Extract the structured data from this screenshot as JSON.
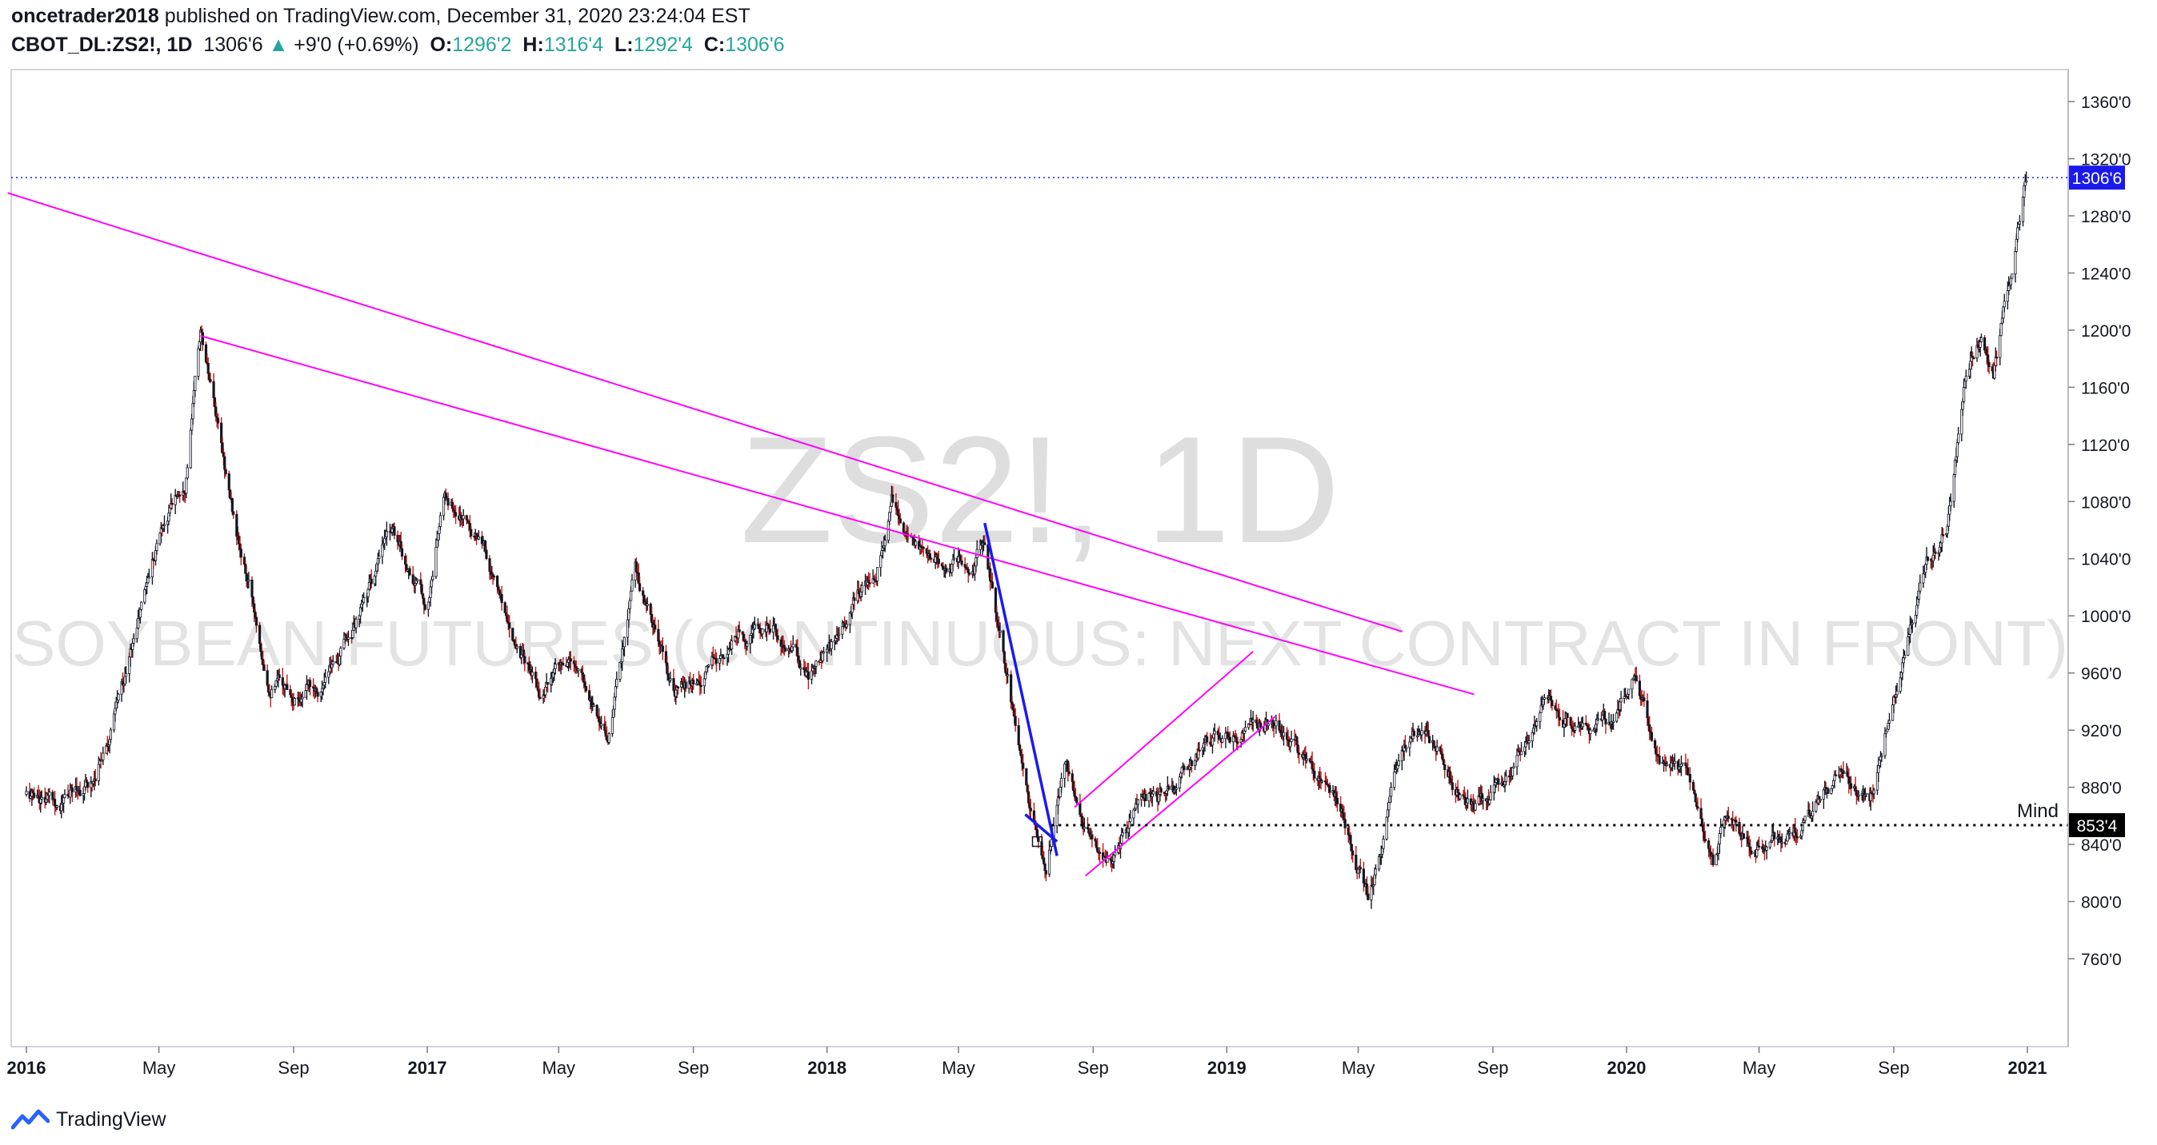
{
  "header": {
    "author": "oncetrader2018",
    "published_text": "published on TradingView.com, December 31, 2020 23:24:04 EST"
  },
  "ohlc": {
    "symbol": "CBOT_DL:ZS2!, 1D",
    "last": "1306'6",
    "arrow": "▲",
    "change": "+9'0 (+0.69%)",
    "o_label": "O:",
    "o": "1296'2",
    "h_label": "H:",
    "h": "1316'4",
    "l_label": "L:",
    "l": "1292'4",
    "c_label": "C:",
    "c": "1306'6"
  },
  "watermark": {
    "symbol": "ZS2!, 1D",
    "description": "SOYBEAN FUTURES (CONTINUOUS: NEXT CONTRACT IN FRONT)"
  },
  "footer": {
    "brand": "TradingView"
  },
  "colors": {
    "up": "#26a69a",
    "candle": "#131722",
    "down_wick": "#b71c1c",
    "trendline": "#ff00ff",
    "blue_line": "#1a1aee",
    "price_tag": "#1a1aee",
    "support_tag": "#000000"
  },
  "chart_data": {
    "type": "candlestick",
    "y_range": [
      740,
      1380
    ],
    "x_ticks": [
      "2016",
      "May",
      "Sep",
      "2017",
      "May",
      "Sep",
      "2018",
      "May",
      "Sep",
      "2019",
      "May",
      "Sep",
      "2020",
      "May",
      "Sep",
      "2021"
    ],
    "y_ticks": [
      "760'0",
      "800'0",
      "840'0",
      "880'0",
      "920'0",
      "960'0",
      "1000'0",
      "1040'0",
      "1080'0",
      "1120'0",
      "1160'0",
      "1200'0",
      "1240'0",
      "1280'0",
      "1320'0",
      "1360'0"
    ],
    "y_tick_values": [
      760,
      800,
      840,
      880,
      920,
      960,
      1000,
      1040,
      1080,
      1120,
      1160,
      1200,
      1240,
      1280,
      1320,
      1360
    ],
    "last_price": {
      "label": "1306'6",
      "value": 1306.75
    },
    "support": {
      "label": "853'4",
      "value": 853.5,
      "annotation": "Mind"
    },
    "price_path": [
      {
        "date": "2016-01-01",
        "value": 875
      },
      {
        "date": "2016-02-01",
        "value": 870
      },
      {
        "date": "2016-03-01",
        "value": 885
      },
      {
        "date": "2016-04-01",
        "value": 960
      },
      {
        "date": "2016-05-01",
        "value": 1060
      },
      {
        "date": "2016-05-25",
        "value": 1100
      },
      {
        "date": "2016-06-08",
        "value": 1200
      },
      {
        "date": "2016-06-25",
        "value": 1120
      },
      {
        "date": "2016-07-15",
        "value": 1040
      },
      {
        "date": "2016-08-10",
        "value": 960
      },
      {
        "date": "2016-09-01",
        "value": 950
      },
      {
        "date": "2016-10-01",
        "value": 955
      },
      {
        "date": "2016-11-01",
        "value": 1000
      },
      {
        "date": "2016-12-01",
        "value": 1060
      },
      {
        "date": "2017-01-01",
        "value": 1005
      },
      {
        "date": "2017-01-15",
        "value": 1080
      },
      {
        "date": "2017-02-15",
        "value": 1060
      },
      {
        "date": "2017-03-15",
        "value": 1000
      },
      {
        "date": "2017-04-15",
        "value": 950
      },
      {
        "date": "2017-05-15",
        "value": 960
      },
      {
        "date": "2017-06-15",
        "value": 920
      },
      {
        "date": "2017-07-10",
        "value": 1030
      },
      {
        "date": "2017-08-15",
        "value": 940
      },
      {
        "date": "2017-09-15",
        "value": 960
      },
      {
        "date": "2017-10-15",
        "value": 990
      },
      {
        "date": "2017-11-15",
        "value": 990
      },
      {
        "date": "2017-12-15",
        "value": 960
      },
      {
        "date": "2018-01-15",
        "value": 985
      },
      {
        "date": "2018-02-15",
        "value": 1040
      },
      {
        "date": "2018-03-01",
        "value": 1085
      },
      {
        "date": "2018-04-01",
        "value": 1040
      },
      {
        "date": "2018-05-01",
        "value": 1040
      },
      {
        "date": "2018-05-25",
        "value": 1050
      },
      {
        "date": "2018-06-15",
        "value": 960
      },
      {
        "date": "2018-07-05",
        "value": 860
      },
      {
        "date": "2018-07-20",
        "value": 830
      },
      {
        "date": "2018-08-05",
        "value": 895
      },
      {
        "date": "2018-09-01",
        "value": 850
      },
      {
        "date": "2018-09-15",
        "value": 830
      },
      {
        "date": "2018-10-15",
        "value": 865
      },
      {
        "date": "2018-11-15",
        "value": 880
      },
      {
        "date": "2018-12-15",
        "value": 915
      },
      {
        "date": "2019-01-15",
        "value": 920
      },
      {
        "date": "2019-02-15",
        "value": 925
      },
      {
        "date": "2019-03-15",
        "value": 900
      },
      {
        "date": "2019-04-15",
        "value": 870
      },
      {
        "date": "2019-05-10",
        "value": 805
      },
      {
        "date": "2019-06-01",
        "value": 880
      },
      {
        "date": "2019-06-20",
        "value": 920
      },
      {
        "date": "2019-07-15",
        "value": 900
      },
      {
        "date": "2019-08-15",
        "value": 860
      },
      {
        "date": "2019-09-15",
        "value": 890
      },
      {
        "date": "2019-10-15",
        "value": 940
      },
      {
        "date": "2019-11-15",
        "value": 925
      },
      {
        "date": "2019-12-15",
        "value": 925
      },
      {
        "date": "2020-01-10",
        "value": 955
      },
      {
        "date": "2020-02-01",
        "value": 900
      },
      {
        "date": "2020-03-01",
        "value": 880
      },
      {
        "date": "2020-03-20",
        "value": 830
      },
      {
        "date": "2020-04-01",
        "value": 860
      },
      {
        "date": "2020-04-25",
        "value": 835
      },
      {
        "date": "2020-05-15",
        "value": 840
      },
      {
        "date": "2020-06-15",
        "value": 860
      },
      {
        "date": "2020-07-15",
        "value": 885
      },
      {
        "date": "2020-08-10",
        "value": 870
      },
      {
        "date": "2020-09-01",
        "value": 950
      },
      {
        "date": "2020-10-01",
        "value": 1030
      },
      {
        "date": "2020-10-20",
        "value": 1060
      },
      {
        "date": "2020-11-05",
        "value": 1160
      },
      {
        "date": "2020-11-20",
        "value": 1190
      },
      {
        "date": "2020-12-01",
        "value": 1170
      },
      {
        "date": "2020-12-15",
        "value": 1230
      },
      {
        "date": "2020-12-31",
        "value": 1306.75
      }
    ],
    "drawings": [
      {
        "kind": "trendline",
        "color": "#ff00ff",
        "from": {
          "date": "2015-12-15",
          "value": 1296
        },
        "to": {
          "date": "2019-06-10",
          "value": 989
        }
      },
      {
        "kind": "trendline",
        "color": "#ff00ff",
        "from": {
          "date": "2016-06-08",
          "value": 1196
        },
        "to": {
          "date": "2019-08-15",
          "value": 945
        }
      },
      {
        "kind": "trendline",
        "color": "#ff00ff",
        "from": {
          "date": "2018-08-15",
          "value": 866
        },
        "to": {
          "date": "2019-01-25",
          "value": 975
        }
      },
      {
        "kind": "trendline",
        "color": "#ff00ff",
        "from": {
          "date": "2018-08-25",
          "value": 818
        },
        "to": {
          "date": "2019-02-15",
          "value": 930
        }
      },
      {
        "kind": "trendline",
        "color": "#1a1aee",
        "from": {
          "date": "2018-05-25",
          "value": 1065
        },
        "to": {
          "date": "2018-07-30",
          "value": 832
        }
      },
      {
        "kind": "trendline",
        "color": "#1a1aee",
        "from": {
          "date": "2018-07-01",
          "value": 861
        },
        "to": {
          "date": "2018-07-30",
          "value": 842
        }
      }
    ]
  }
}
